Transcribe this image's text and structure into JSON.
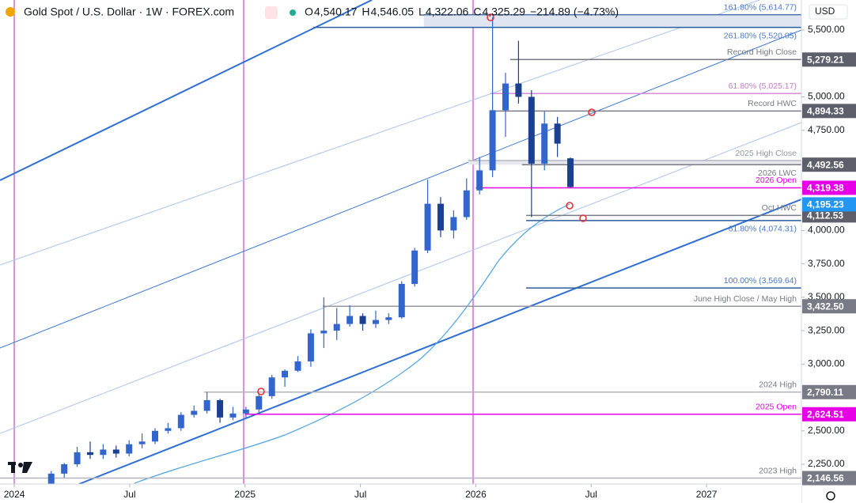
{
  "chart_data": {
    "type": "candlestick",
    "title": "Gold Spot / U.S. Dollar · 1W · FOREX.com",
    "ohlc": [
      {
        "label": "O",
        "value": "4,540.17"
      },
      {
        "label": "H",
        "value": "4,546.05"
      },
      {
        "label": "L",
        "value": "4,322.06"
      },
      {
        "label": "C",
        "value": "4,325.29"
      }
    ],
    "change": "−214.89 (−4.73%)",
    "currency": "USD",
    "up_color": "#3366cc",
    "down_color": "#1b3f91",
    "xlim": [
      2023.938,
      2027.411
    ],
    "xticks": [
      {
        "value": 2024,
        "label": "2024"
      },
      {
        "value": 2024.5,
        "label": "Jul"
      },
      {
        "value": 2025,
        "label": "2025"
      },
      {
        "value": 2025.5,
        "label": "Jul"
      },
      {
        "value": 2026,
        "label": "2026"
      },
      {
        "value": 2026.5,
        "label": "Jul"
      },
      {
        "value": 2027,
        "label": "2027"
      }
    ],
    "ylim": [
      2114,
      5725
    ],
    "yticks": [
      {
        "value": 5500,
        "label": "5,500.00"
      },
      {
        "value": 5000,
        "label": "5,000.00"
      },
      {
        "value": 4750,
        "label": "4,750.00"
      },
      {
        "value": 4000,
        "label": "4,000.00"
      },
      {
        "value": 3750,
        "label": "3,750.00"
      },
      {
        "value": 3500,
        "label": "3,500.00"
      },
      {
        "value": 3250,
        "label": "3,250.00"
      },
      {
        "value": 3000,
        "label": "3,000.00"
      },
      {
        "value": 2500,
        "label": "2,500.00"
      },
      {
        "value": 2250,
        "label": "2,250.00"
      }
    ],
    "candles": [
      [
        2024.16,
        2070,
        2200,
        2050,
        2180
      ],
      [
        2024.2163,
        2180,
        2260,
        2150,
        2250
      ],
      [
        2024.2725,
        2250,
        2380,
        2230,
        2340
      ],
      [
        2024.3288,
        2340,
        2420,
        2290,
        2320
      ],
      [
        2024.385,
        2320,
        2400,
        2290,
        2360
      ],
      [
        2024.4413,
        2360,
        2390,
        2300,
        2330
      ],
      [
        2024.4975,
        2330,
        2430,
        2310,
        2400
      ],
      [
        2024.5538,
        2400,
        2480,
        2370,
        2420
      ],
      [
        2024.61,
        2420,
        2520,
        2400,
        2500
      ],
      [
        2024.6663,
        2500,
        2560,
        2480,
        2520
      ],
      [
        2024.7225,
        2520,
        2640,
        2500,
        2620
      ],
      [
        2024.7788,
        2620,
        2690,
        2600,
        2650
      ],
      [
        2024.835,
        2650,
        2790,
        2630,
        2730
      ],
      [
        2024.8913,
        2730,
        2740,
        2560,
        2600
      ],
      [
        2024.9475,
        2600,
        2680,
        2580,
        2630
      ],
      [
        2025.0038,
        2630,
        2680,
        2600,
        2660
      ],
      [
        2025.06,
        2660,
        2780,
        2640,
        2760
      ],
      [
        2025.1163,
        2760,
        2920,
        2740,
        2900
      ],
      [
        2025.1725,
        2900,
        2960,
        2830,
        2950
      ],
      [
        2025.2288,
        2950,
        3060,
        2940,
        3020
      ],
      [
        2025.285,
        3020,
        3260,
        2980,
        3230
      ],
      [
        2025.3413,
        3230,
        3500,
        3120,
        3250
      ],
      [
        2025.3975,
        3250,
        3420,
        3180,
        3300
      ],
      [
        2025.4538,
        3300,
        3440,
        3280,
        3360
      ],
      [
        2025.51,
        3360,
        3380,
        3250,
        3300
      ],
      [
        2025.5663,
        3300,
        3400,
        3270,
        3330
      ],
      [
        2025.6225,
        3330,
        3380,
        3300,
        3350
      ],
      [
        2025.6788,
        3350,
        3620,
        3340,
        3600
      ],
      [
        2025.735,
        3600,
        3870,
        3580,
        3850
      ],
      [
        2025.7913,
        3850,
        4380,
        3830,
        4200
      ],
      [
        2025.8475,
        4200,
        4250,
        3950,
        4000
      ],
      [
        2025.9038,
        4000,
        4150,
        3940,
        4100
      ],
      [
        2025.96,
        4100,
        4390,
        4080,
        4300
      ],
      [
        2026.0163,
        4300,
        4550,
        4270,
        4450
      ],
      [
        2026.0725,
        4450,
        5595,
        4400,
        4900
      ],
      [
        2026.1288,
        4900,
        5180,
        4700,
        5100
      ],
      [
        2026.185,
        5100,
        5420,
        4950,
        5000
      ],
      [
        2026.2413,
        5000,
        5050,
        4100,
        4500
      ],
      [
        2026.2975,
        4500,
        4890,
        4450,
        4800
      ],
      [
        2026.3538,
        4800,
        4850,
        4550,
        4650
      ],
      [
        2026.41,
        4540.17,
        4546.05,
        4322.06,
        4325.29
      ]
    ],
    "levels": [
      {
        "value": 5614.77,
        "from": 2025.775,
        "color": "#4a6fa5",
        "label": "161.80% (5,614.77)",
        "label_color": "#4a79c4",
        "shade": "#dfe6f2"
      },
      {
        "value": 5520.05,
        "from": 2025.296,
        "color": "#2e5c9e",
        "label": "261.80% (5,520.05)",
        "label_color": "#4a79c4"
      },
      {
        "value": 5279.21,
        "from": 2026.149,
        "color": "#787b86",
        "label": "Record High Close",
        "label_color": "#787b86",
        "axis_label": "5,279.21",
        "axis_color": "#5d606b"
      },
      {
        "value": 5025.17,
        "from": 2026.063,
        "color": "#d68fd6",
        "label": "61.80% (5,025.17)",
        "label_color": "#c77cc7"
      },
      {
        "value": 4894.33,
        "from": 2026.063,
        "color": "#787b86",
        "label": "Record HWC",
        "label_color": "#787b86",
        "axis_label": "4,894.33",
        "axis_color": "#5d606b"
      },
      {
        "value": 4523,
        "from": 2025.967,
        "color": "#b2b5be",
        "label": "2025 High Close",
        "label_color": "#9598a1",
        "shade": "#e6e8ee"
      },
      {
        "value": 4492.56,
        "from": 2026.2,
        "color": "#787b86",
        "label": "2026 LWC",
        "label_color": "#787b86",
        "axis_label": "4,492.56",
        "axis_color": "#5d606b"
      },
      {
        "value": 4319.38,
        "from": 2026.0,
        "color": "#e600e6",
        "label": "2026 Open",
        "label_color": "#e600e6",
        "axis_label": "4,319.38",
        "axis_color": "#e600e6"
      },
      {
        "value": 4112.53,
        "from": 2026.218,
        "color": "#787b86",
        "label": "Oct HWC",
        "label_color": "#787b86",
        "axis_label": "4,112.53",
        "axis_color": "#5d606b"
      },
      {
        "value": 4074.31,
        "from": 2026.218,
        "color": "#2e5c9e",
        "label": "61.80% (4,074.31)",
        "label_color": "#4a79c4"
      },
      {
        "value": 3569.64,
        "from": 2026.218,
        "color": "#2e5c9e",
        "label": "100.00% (3,569.64)",
        "label_color": "#4a79c4"
      },
      {
        "value": 3432.5,
        "from": 2025.337,
        "color": "#9598a1",
        "label": "June High Close / May High",
        "label_color": "#787b86",
        "axis_label": "3,432.50",
        "axis_color": "#787b86"
      },
      {
        "value": 2790.11,
        "from": 2024.822,
        "color": "#b2b5be",
        "label": "2024 High",
        "label_color": "#787b86",
        "axis_label": "2,790.11",
        "axis_color": "#787b86"
      },
      {
        "value": 2624.51,
        "from": 2025.0,
        "color": "#e600e6",
        "label": "2025 Open",
        "label_color": "#e600e6",
        "axis_label": "2,624.51",
        "axis_color": "#e600e6"
      },
      {
        "value": 2146.56,
        "from": 2023.938,
        "color": "#b2b5be",
        "label": "2023 High",
        "label_color": "#787b86",
        "axis_label": "2,146.56",
        "axis_color": "#787b86"
      }
    ],
    "ma_label": {
      "value": 4195.23,
      "label": "4,195.23",
      "color": "#2196f3"
    }
  }
}
